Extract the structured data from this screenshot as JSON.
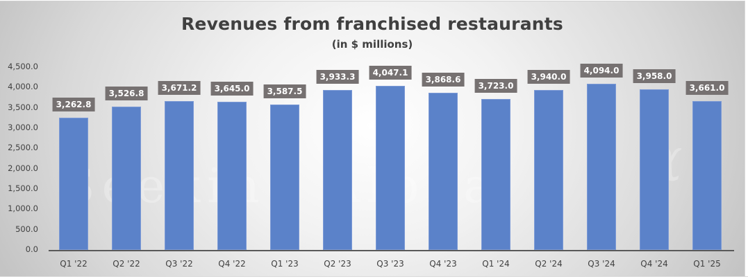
{
  "chart_data": {
    "type": "bar",
    "title": "Revenues from franchised restaurants",
    "subtitle": "(in $ millions)",
    "xlabel": "",
    "ylabel": "",
    "categories": [
      "Q1 '22",
      "Q2 '22",
      "Q3 '22",
      "Q4 '22",
      "Q1 '23",
      "Q2 '23",
      "Q3 '23",
      "Q4 '23",
      "Q1 '24",
      "Q2 '24",
      "Q3 '24",
      "Q4 '24",
      "Q1 '25"
    ],
    "values": [
      3262.8,
      3526.8,
      3671.2,
      3645.0,
      3587.5,
      3933.3,
      4047.1,
      3868.6,
      3723.0,
      3940.0,
      4094.0,
      3958.0,
      3661.0
    ],
    "value_labels": [
      "3,262.8",
      "3,526.8",
      "3,671.2",
      "3,645.0",
      "3,587.5",
      "3,933.3",
      "4,047.1",
      "3,868.6",
      "3,723.0",
      "3,940.0",
      "4,094.0",
      "3,958.0",
      "3,661.0"
    ],
    "ylim": [
      0,
      4500
    ],
    "yticks": [
      "4,500.0",
      "4,000.0",
      "3,500.0",
      "3,000.0",
      "2,500.0",
      "2,000.0",
      "1,500.0",
      "1,000.0",
      "500.0",
      "0.0"
    ],
    "ytick_values": [
      4500,
      4000,
      3500,
      3000,
      2500,
      2000,
      1500,
      1000,
      500,
      0
    ],
    "grid": false,
    "legend": null,
    "colors": {
      "bar": "#5b82c9",
      "label_bg": "#767171",
      "label_text": "#ffffff",
      "text": "#404040"
    },
    "watermark": "Seeking Alpha α"
  }
}
